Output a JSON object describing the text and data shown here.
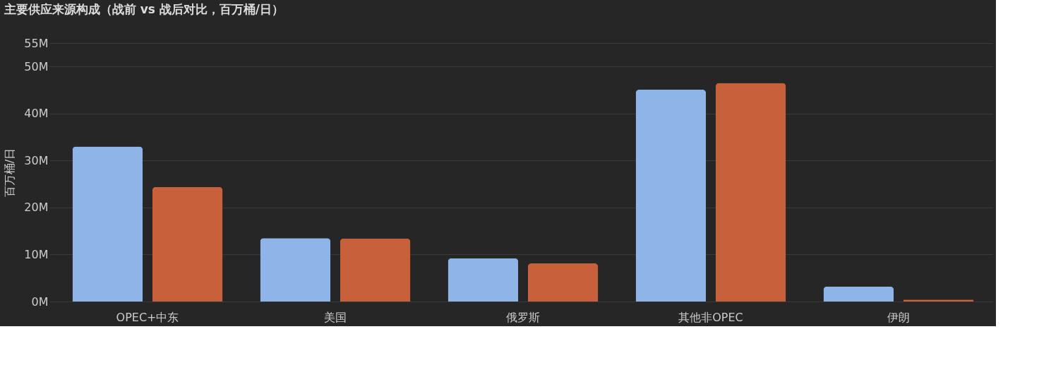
{
  "chart_data": {
    "type": "bar",
    "title": "主要供应来源构成（战前 vs 战后对比，百万桶/日）",
    "ylabel": "百万桶/日",
    "categories": [
      "OPEC+中东",
      "美国",
      "俄罗斯",
      "其他非OPEC",
      "伊朗"
    ],
    "series": [
      {
        "color": "#8fb4e8",
        "values": [
          33.0,
          13.5,
          9.2,
          45.1,
          3.2
        ]
      },
      {
        "color": "#c8613b",
        "values": [
          24.4,
          13.4,
          8.1,
          46.5,
          0.4
        ]
      }
    ],
    "ylim": [
      0,
      55
    ],
    "yticks": [
      {
        "value": 0,
        "label": "0M"
      },
      {
        "value": 10,
        "label": "10M"
      },
      {
        "value": 20,
        "label": "20M"
      },
      {
        "value": 30,
        "label": "30M"
      },
      {
        "value": 40,
        "label": "40M"
      },
      {
        "value": 50,
        "label": "50M"
      },
      {
        "value": 55,
        "label": "55M"
      }
    ],
    "grid": "y",
    "legend": false
  }
}
